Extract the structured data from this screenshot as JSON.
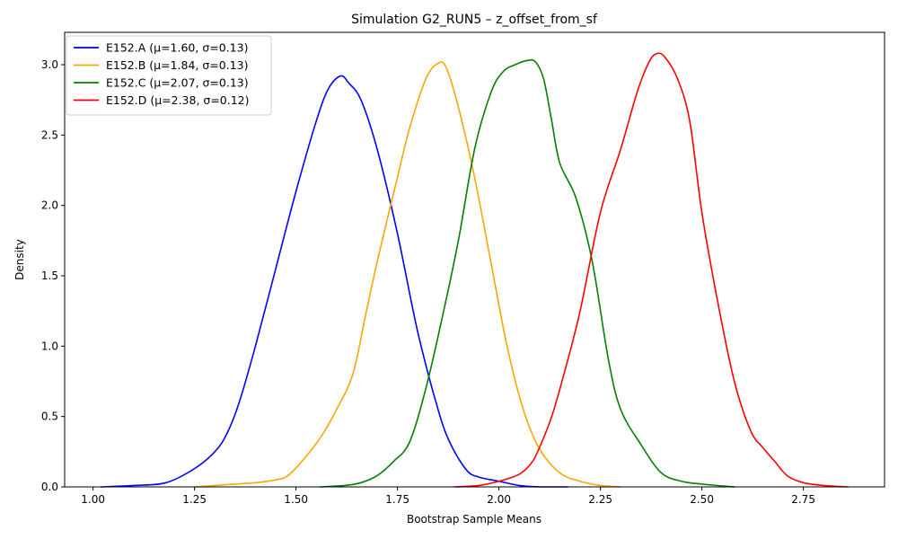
{
  "chart_data": {
    "type": "line",
    "title": "Simulation G2_RUN5 – z_offset_from_sf",
    "xlabel": "Bootstrap Sample Means",
    "ylabel": "Density",
    "xlim": [
      0.93,
      2.95
    ],
    "ylim": [
      0,
      3.23
    ],
    "x_ticks": [
      1.0,
      1.25,
      1.5,
      1.75,
      2.0,
      2.25,
      2.5,
      2.75
    ],
    "x_tick_labels": [
      "1.00",
      "1.25",
      "1.50",
      "1.75",
      "2.00",
      "2.25",
      "2.50",
      "2.75"
    ],
    "y_ticks": [
      0,
      0.5,
      1.0,
      1.5,
      2.0,
      2.5,
      3.0
    ],
    "y_tick_labels": [
      "0.0",
      "0.5",
      "1.0",
      "1.5",
      "2.0",
      "2.5",
      "3.0"
    ],
    "grid": false,
    "legend_position": "top-left",
    "series": [
      {
        "name": "E152.A (μ=1.60, σ=0.13)",
        "color": "#0000ff",
        "x": [
          1.02,
          1.1,
          1.18,
          1.25,
          1.3,
          1.33,
          1.36,
          1.4,
          1.45,
          1.5,
          1.55,
          1.58,
          1.61,
          1.63,
          1.66,
          1.7,
          1.75,
          1.8,
          1.85,
          1.88,
          1.92,
          1.95,
          2.0,
          2.05,
          2.1,
          2.17
        ],
        "y": [
          0.0,
          0.01,
          0.03,
          0.13,
          0.25,
          0.38,
          0.6,
          1.0,
          1.55,
          2.1,
          2.6,
          2.83,
          2.92,
          2.87,
          2.75,
          2.4,
          1.8,
          1.1,
          0.55,
          0.31,
          0.12,
          0.07,
          0.04,
          0.01,
          0.0,
          0.0
        ]
      },
      {
        "name": "E152.B (μ=1.84, σ=0.13)",
        "color": "#ffa500",
        "x": [
          1.25,
          1.3,
          1.35,
          1.4,
          1.45,
          1.48,
          1.52,
          1.56,
          1.6,
          1.64,
          1.67,
          1.7,
          1.75,
          1.78,
          1.82,
          1.85,
          1.87,
          1.9,
          1.94,
          1.98,
          2.02,
          2.06,
          2.1,
          2.15,
          2.2,
          2.25,
          2.3
        ],
        "y": [
          0.0,
          0.01,
          0.02,
          0.03,
          0.05,
          0.08,
          0.2,
          0.35,
          0.55,
          0.8,
          1.2,
          1.6,
          2.2,
          2.55,
          2.9,
          3.01,
          2.98,
          2.7,
          2.2,
          1.6,
          1.0,
          0.55,
          0.27,
          0.1,
          0.04,
          0.01,
          0.0
        ]
      },
      {
        "name": "E152.C (μ=2.07, σ=0.13)",
        "color": "#008000",
        "x": [
          1.56,
          1.62,
          1.66,
          1.7,
          1.74,
          1.78,
          1.82,
          1.86,
          1.9,
          1.94,
          1.98,
          2.01,
          2.04,
          2.07,
          2.09,
          2.11,
          2.13,
          2.15,
          2.19,
          2.23,
          2.27,
          2.3,
          2.35,
          2.4,
          2.45,
          2.5,
          2.58
        ],
        "y": [
          0.0,
          0.01,
          0.03,
          0.08,
          0.18,
          0.32,
          0.7,
          1.2,
          1.75,
          2.4,
          2.8,
          2.95,
          3.0,
          3.03,
          3.02,
          2.9,
          2.6,
          2.3,
          2.05,
          1.6,
          0.9,
          0.55,
          0.3,
          0.1,
          0.04,
          0.02,
          0.0
        ]
      },
      {
        "name": "E152.D (μ=2.38, σ=0.12)",
        "color": "#ff0000",
        "x": [
          1.89,
          1.95,
          2.0,
          2.05,
          2.08,
          2.1,
          2.13,
          2.16,
          2.2,
          2.25,
          2.3,
          2.34,
          2.37,
          2.39,
          2.41,
          2.44,
          2.47,
          2.5,
          2.54,
          2.58,
          2.62,
          2.65,
          2.68,
          2.71,
          2.75,
          2.8,
          2.86
        ],
        "y": [
          0.0,
          0.01,
          0.04,
          0.09,
          0.17,
          0.28,
          0.5,
          0.8,
          1.25,
          1.95,
          2.4,
          2.8,
          3.02,
          3.08,
          3.05,
          2.9,
          2.6,
          1.95,
          1.3,
          0.75,
          0.4,
          0.28,
          0.18,
          0.08,
          0.03,
          0.01,
          0.0
        ]
      }
    ]
  }
}
